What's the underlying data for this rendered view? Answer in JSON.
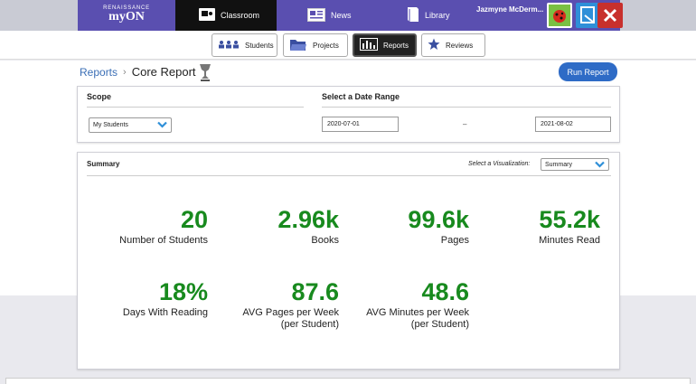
{
  "brand": {
    "small": "RENAISSANCE",
    "name": "myON"
  },
  "nav": [
    {
      "label": "Classroom",
      "icon": "classroom-icon"
    },
    {
      "label": "News",
      "icon": "newspaper-icon"
    },
    {
      "label": "Library",
      "icon": "book-icon"
    }
  ],
  "user": {
    "name": "Jazmyne McDerm..."
  },
  "subnav": [
    {
      "label": "Students",
      "icon": "students-icon"
    },
    {
      "label": "Projects",
      "icon": "folder-icon"
    },
    {
      "label": "Reports",
      "icon": "reports-icon"
    },
    {
      "label": "Reviews",
      "icon": "star-icon"
    }
  ],
  "breadcrumb": {
    "parent": "Reports",
    "separator": "›",
    "current": "Core Report"
  },
  "run_report_label": "Run Report",
  "scope": {
    "heading": "Scope",
    "selected": "My Students"
  },
  "date_range": {
    "heading": "Select a Date Range",
    "start": "2020-07-01",
    "separator": "–",
    "end": "2021-08-02"
  },
  "summary": {
    "heading": "Summary",
    "visualization_label": "Select a Visualization:",
    "visualization_selected": "Summary",
    "stats": [
      {
        "value": "20",
        "label": "Number of Students",
        "label2": ""
      },
      {
        "value": "2.96k",
        "label": "Books",
        "label2": ""
      },
      {
        "value": "99.6k",
        "label": "Pages",
        "label2": ""
      },
      {
        "value": "55.2k",
        "label": "Minutes Read",
        "label2": ""
      },
      {
        "value": "18%",
        "label": "Days With Reading",
        "label2": ""
      },
      {
        "value": "87.6",
        "label": "AVG Pages per Week",
        "label2": "(per Student)"
      },
      {
        "value": "48.6",
        "label": "AVG Minutes per Week",
        "label2": "(per Student)"
      }
    ]
  },
  "colors": {
    "nav_purple": "#5a4fb0",
    "accent_blue": "#2e6bc6",
    "stat_green": "#188a1e",
    "link_blue": "#3b6fb6"
  }
}
